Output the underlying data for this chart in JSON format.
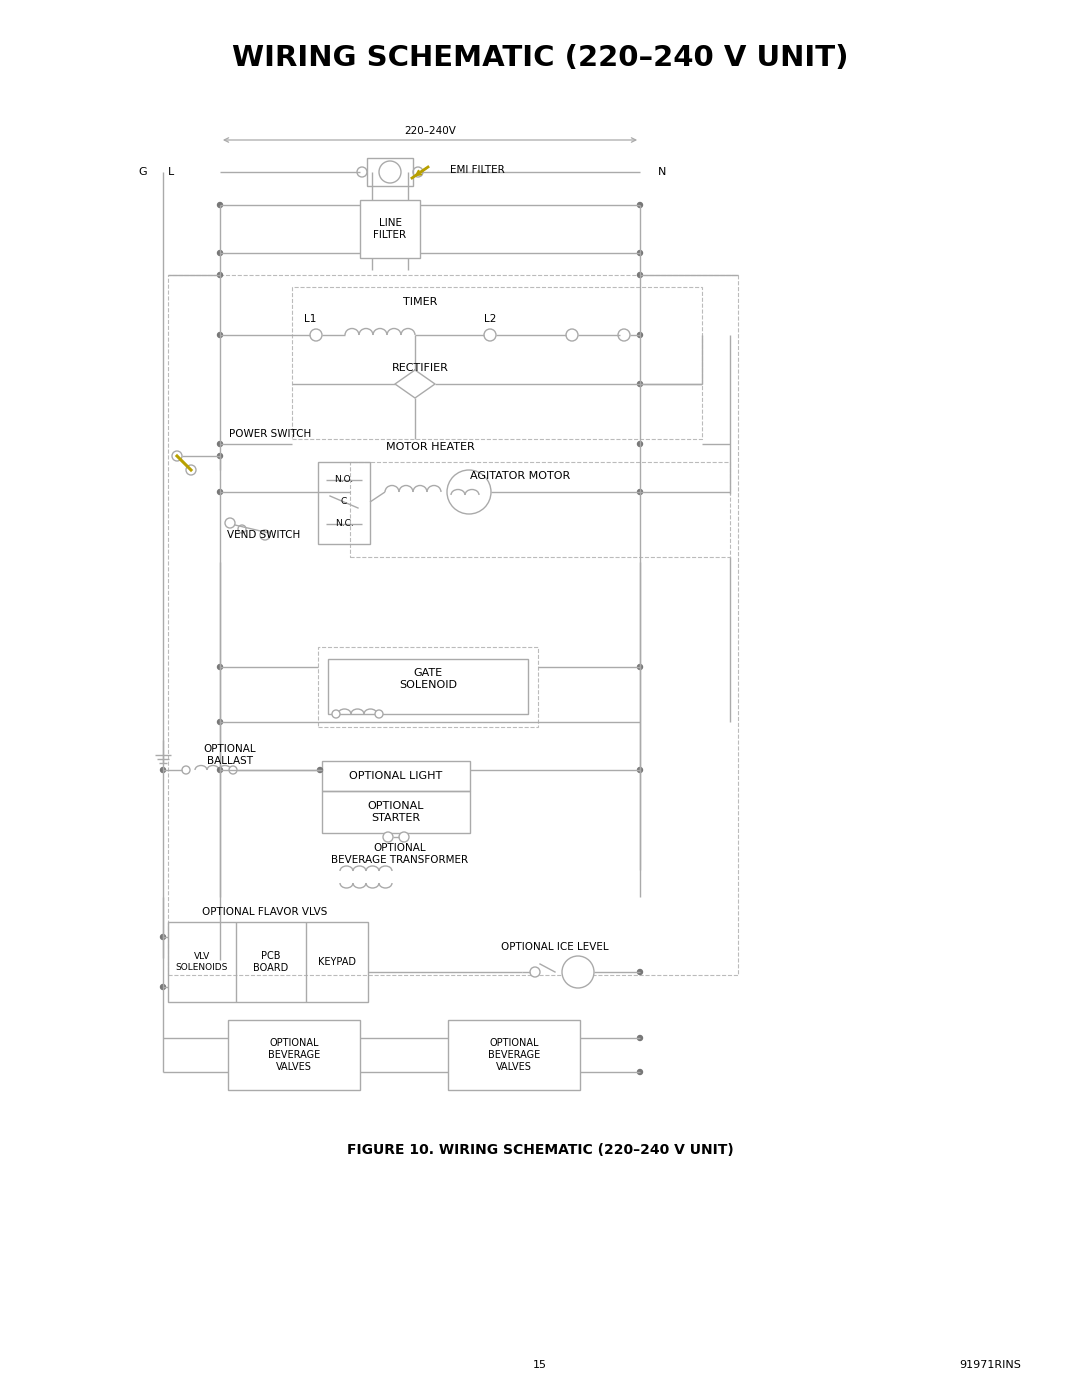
{
  "title": "WIRING SCHEMATIC (220–240 V UNIT)",
  "figure_caption": "FIGURE 10. WIRING SCHEMATIC (220–240 V UNIT)",
  "page_number": "15",
  "doc_number": "91971RINS",
  "bg_color": "#ffffff",
  "lc": "#aaaaaa",
  "tc": "#000000",
  "yc": "#b8a000",
  "dsc": "#bbbbbb"
}
